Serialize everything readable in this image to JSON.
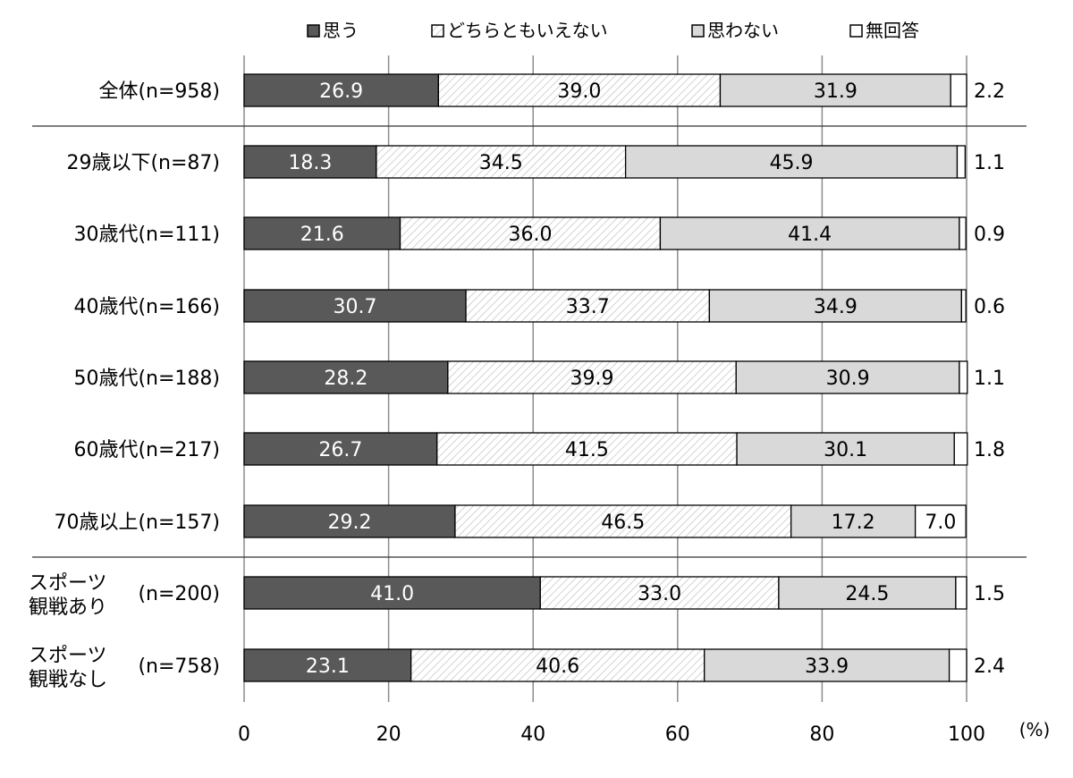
{
  "chart_data": {
    "type": "bar",
    "orientation": "horizontal",
    "stacked": true,
    "xlim": [
      0,
      100
    ],
    "xticks": [
      "0",
      "20",
      "40",
      "60",
      "80",
      "100"
    ],
    "unit_label": "(%)",
    "grid": true,
    "legend_position": "top",
    "series": [
      {
        "name": "思う",
        "color": "#595959",
        "pattern": "solid"
      },
      {
        "name": "どちらともいえない",
        "color": "#ffffff",
        "pattern": "hatch"
      },
      {
        "name": "思わない",
        "color": "#d9d9d9",
        "pattern": "solid"
      },
      {
        "name": "無回答",
        "color": "#ffffff",
        "pattern": "solid"
      }
    ],
    "categories": [
      {
        "label": [
          "全体(n=958)"
        ],
        "values": [
          26.9,
          39.0,
          31.9,
          2.2
        ],
        "labels": [
          "26.9",
          "39.0",
          "31.9",
          "2.2"
        ]
      },
      {
        "label": [
          "29歳以下(n=87)"
        ],
        "values": [
          18.3,
          34.5,
          45.9,
          1.1
        ],
        "labels": [
          "18.3",
          "34.5",
          "45.9",
          "1.1"
        ]
      },
      {
        "label": [
          "30歳代(n=111)"
        ],
        "values": [
          21.6,
          36.0,
          41.4,
          0.9
        ],
        "labels": [
          "21.6",
          "36.0",
          "41.4",
          "0.9"
        ]
      },
      {
        "label": [
          "40歳代(n=166)"
        ],
        "values": [
          30.7,
          33.7,
          34.9,
          0.6
        ],
        "labels": [
          "30.7",
          "33.7",
          "34.9",
          "0.6"
        ]
      },
      {
        "label": [
          "50歳代(n=188)"
        ],
        "values": [
          28.2,
          39.9,
          30.9,
          1.1
        ],
        "labels": [
          "28.2",
          "39.9",
          "30.9",
          "1.1"
        ]
      },
      {
        "label": [
          "60歳代(n=217)"
        ],
        "values": [
          26.7,
          41.5,
          30.1,
          1.8
        ],
        "labels": [
          "26.7",
          "41.5",
          "30.1",
          "1.8"
        ]
      },
      {
        "label": [
          "70歳以上(n=157)"
        ],
        "values": [
          29.2,
          46.5,
          17.2,
          7.0
        ],
        "labels": [
          "29.2",
          "46.5",
          "17.2",
          "7.0"
        ]
      },
      {
        "label": [
          "スポーツ",
          "観戦あり",
          "(n=200)"
        ],
        "values": [
          41.0,
          33.0,
          24.5,
          1.5
        ],
        "labels": [
          "41.0",
          "33.0",
          "24.5",
          "1.5"
        ]
      },
      {
        "label": [
          "スポーツ",
          "観戦なし",
          "(n=758)"
        ],
        "values": [
          23.1,
          40.6,
          33.9,
          2.4
        ],
        "labels": [
          "23.1",
          "40.6",
          "33.9",
          "2.4"
        ]
      }
    ],
    "separators_after": [
      0,
      6
    ]
  }
}
